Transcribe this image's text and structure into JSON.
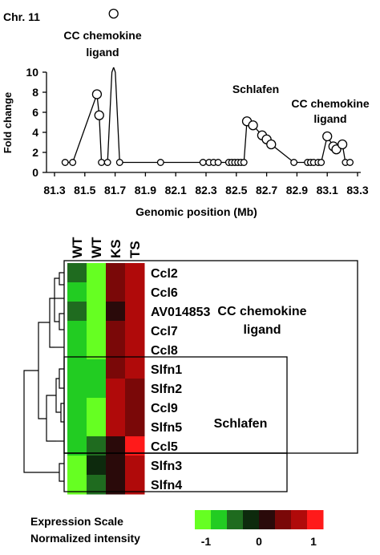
{
  "figure": {
    "chromosome_label": "Chr. 11",
    "annotations": {
      "cc_left": [
        "CC chemokine",
        "ligand"
      ],
      "schlafen_top": "Schlafen",
      "cc_right": [
        "CC chemokine",
        "ligand"
      ]
    },
    "heatmap_groups": {
      "cc": [
        "CC chemokine",
        "ligand"
      ],
      "schlafen": "Schlafen"
    },
    "scale": {
      "title": "Expression Scale",
      "subtitle": "Normalized intensity",
      "ticks": [
        "-1",
        "0",
        "1"
      ],
      "colors": [
        "#66ff22",
        "#22cc22",
        "#1f6b1f",
        "#0d2a0d",
        "#2a0a0a",
        "#7a0808",
        "#b00a0a",
        "#ff1a1a"
      ]
    }
  },
  "chart_data": [
    {
      "type": "line",
      "xlabel": "Genomic position (Mb)",
      "ylabel": "Fold change",
      "xlim": [
        81.3,
        83.3
      ],
      "ylim": [
        0,
        10
      ],
      "xticks": [
        "81.3",
        "81.5",
        "81.7",
        "81.9",
        "82.1",
        "82.3",
        "82.5",
        "82.7",
        "82.9",
        "83.1",
        "83.3"
      ],
      "yticks": [
        "0",
        "2",
        "4",
        "6",
        "8",
        "10"
      ],
      "points": [
        {
          "x": 81.37,
          "y": 1.0,
          "large": false
        },
        {
          "x": 81.42,
          "y": 1.0,
          "large": false
        },
        {
          "x": 81.58,
          "y": 7.8,
          "large": true
        },
        {
          "x": 81.595,
          "y": 5.7,
          "large": true
        },
        {
          "x": 81.61,
          "y": 1.0,
          "large": false
        },
        {
          "x": 81.65,
          "y": 1.0,
          "large": false
        },
        {
          "x": 81.69,
          "y": 13.5,
          "large": true
        },
        {
          "x": 81.73,
          "y": 1.0,
          "large": false
        },
        {
          "x": 82.0,
          "y": 1.0,
          "large": false
        },
        {
          "x": 82.28,
          "y": 1.0,
          "large": false
        },
        {
          "x": 82.32,
          "y": 1.0,
          "large": false
        },
        {
          "x": 82.35,
          "y": 1.0,
          "large": false
        },
        {
          "x": 82.38,
          "y": 1.0,
          "large": false
        },
        {
          "x": 82.45,
          "y": 1.0,
          "large": false
        },
        {
          "x": 82.47,
          "y": 1.0,
          "large": false
        },
        {
          "x": 82.49,
          "y": 1.0,
          "large": false
        },
        {
          "x": 82.51,
          "y": 1.0,
          "large": false
        },
        {
          "x": 82.53,
          "y": 1.0,
          "large": false
        },
        {
          "x": 82.55,
          "y": 1.0,
          "large": false
        },
        {
          "x": 82.57,
          "y": 5.1,
          "large": true
        },
        {
          "x": 82.61,
          "y": 4.7,
          "large": true
        },
        {
          "x": 82.67,
          "y": 3.7,
          "large": true
        },
        {
          "x": 82.7,
          "y": 3.3,
          "large": true
        },
        {
          "x": 82.73,
          "y": 2.8,
          "large": true
        },
        {
          "x": 82.88,
          "y": 1.0,
          "large": false
        },
        {
          "x": 82.97,
          "y": 1.0,
          "large": false
        },
        {
          "x": 82.99,
          "y": 1.0,
          "large": false
        },
        {
          "x": 83.01,
          "y": 1.0,
          "large": false
        },
        {
          "x": 83.04,
          "y": 1.0,
          "large": false
        },
        {
          "x": 83.06,
          "y": 1.0,
          "large": false
        },
        {
          "x": 83.1,
          "y": 3.6,
          "large": true
        },
        {
          "x": 83.14,
          "y": 2.6,
          "large": true
        },
        {
          "x": 83.16,
          "y": 2.3,
          "large": true
        },
        {
          "x": 83.2,
          "y": 2.8,
          "large": true
        },
        {
          "x": 83.22,
          "y": 1.0,
          "large": false
        },
        {
          "x": 83.25,
          "y": 1.0,
          "large": false
        }
      ]
    },
    {
      "type": "heatmap",
      "columns": [
        "WT",
        "WT",
        "KS",
        "TS"
      ],
      "rows": [
        "Ccl2",
        "Ccl6",
        "AV014853",
        "Ccl7",
        "Ccl8",
        "Slfn1",
        "Slfn2",
        "Ccl9",
        "Slfn5",
        "Ccl5",
        "Slfn3",
        "Slfn4"
      ],
      "values": [
        [
          -0.55,
          -0.95,
          0.35,
          0.65
        ],
        [
          -0.6,
          -0.9,
          0.35,
          0.7
        ],
        [
          -0.5,
          -1.0,
          0.1,
          0.75
        ],
        [
          -0.65,
          -0.9,
          0.35,
          0.7
        ],
        [
          -0.6,
          -0.9,
          0.3,
          0.7
        ],
        [
          -0.85,
          -0.75,
          0.45,
          0.6
        ],
        [
          -0.85,
          -0.75,
          0.65,
          0.55
        ],
        [
          -0.65,
          -0.95,
          0.65,
          0.55
        ],
        [
          -0.7,
          -0.9,
          0.75,
          0.35
        ],
        [
          -0.8,
          -0.45,
          0.1,
          1.0
        ],
        [
          -1.0,
          -0.2,
          0.25,
          0.75
        ],
        [
          -1.0,
          -0.3,
          0.15,
          0.75
        ]
      ]
    }
  ]
}
